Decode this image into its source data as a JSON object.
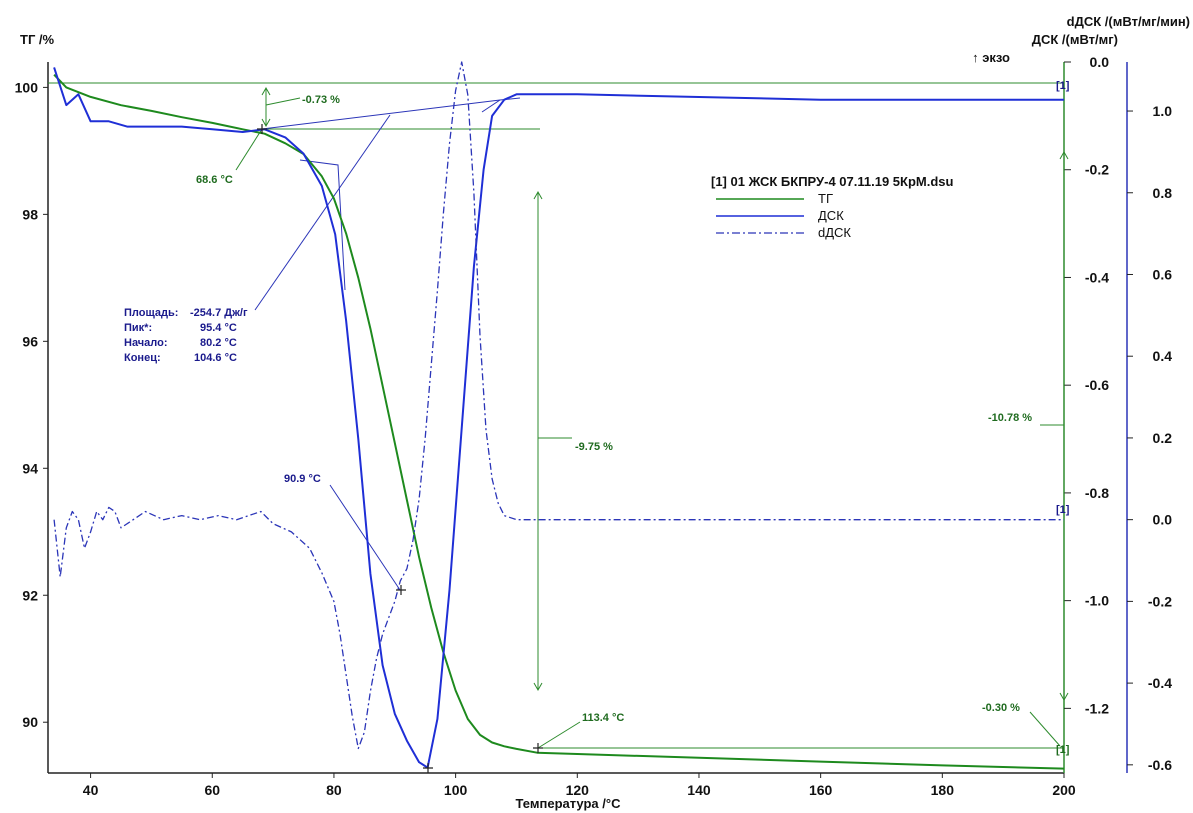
{
  "chart_data": {
    "type": "line",
    "file_label": "[1] 01 ЖСК БКПРУ-4 07.11.19 5КрМ.dsu",
    "xlabel": "Температура /°C",
    "xlim": [
      33,
      200
    ],
    "x_ticks": [
      "40",
      "60",
      "80",
      "100",
      "120",
      "140",
      "160",
      "180",
      "200"
    ],
    "y_tg": {
      "label": "ТГ /%",
      "lim": [
        89.2,
        100.4
      ],
      "ticks": [
        "100",
        "98",
        "96",
        "94",
        "92",
        "90"
      ]
    },
    "y_dsc": {
      "label": "ДСК /(мВт/мг)",
      "exo": "↑ экзо",
      "lim": [
        -1.32,
        0.0
      ],
      "ticks": [
        "0.0",
        "-0.2",
        "-0.4",
        "-0.6",
        "-0.8",
        "-1.0",
        "-1.2"
      ]
    },
    "y_ddsc": {
      "label": "dДСК /(мВт/мг/мин)",
      "lim": [
        -0.62,
        1.12
      ],
      "ticks": [
        "1.0",
        "0.8",
        "0.6",
        "0.4",
        "0.2",
        "0.0",
        "-0.2",
        "-0.4",
        "-0.6"
      ]
    },
    "legend": [
      "ТГ",
      "ДСК",
      "dДСК"
    ],
    "series": [
      {
        "name": "ТГ",
        "axis": "tg",
        "color": "#1e8a1e",
        "style": "solid",
        "x": [
          34,
          36,
          40,
          45,
          50,
          55,
          60,
          65,
          68.6,
          72,
          75,
          78,
          80,
          82,
          84,
          86,
          88,
          90,
          92,
          94,
          96,
          98,
          100,
          102,
          104,
          106,
          108,
          110,
          113.4,
          120,
          140,
          160,
          180,
          200
        ],
        "y": [
          100.2,
          100.0,
          99.85,
          99.72,
          99.63,
          99.53,
          99.44,
          99.34,
          99.27,
          99.12,
          98.95,
          98.6,
          98.25,
          97.7,
          97.0,
          96.2,
          95.3,
          94.4,
          93.5,
          92.6,
          91.8,
          91.1,
          90.5,
          90.05,
          89.8,
          89.68,
          89.62,
          89.58,
          89.52,
          89.5,
          89.44,
          89.38,
          89.32,
          89.27
        ]
      },
      {
        "name": "ДСК",
        "axis": "dsc",
        "color": "#1f2fd6",
        "style": "solid",
        "x": [
          34,
          36,
          38,
          40,
          43,
          46,
          50,
          55,
          60,
          65,
          68.6,
          72,
          75,
          78,
          80.2,
          82,
          84,
          86,
          88,
          90,
          92,
          94,
          95.4,
          97,
          99,
          101,
          103,
          104.6,
          106,
          108,
          110,
          112,
          120,
          140,
          160,
          180,
          200
        ],
        "y": [
          -0.01,
          -0.08,
          -0.06,
          -0.11,
          -0.11,
          -0.12,
          -0.12,
          -0.12,
          -0.125,
          -0.13,
          -0.125,
          -0.14,
          -0.17,
          -0.23,
          -0.32,
          -0.48,
          -0.7,
          -0.95,
          -1.12,
          -1.21,
          -1.26,
          -1.3,
          -1.31,
          -1.22,
          -0.98,
          -0.68,
          -0.38,
          -0.2,
          -0.1,
          -0.07,
          -0.06,
          -0.06,
          -0.06,
          -0.065,
          -0.07,
          -0.07,
          -0.07
        ]
      },
      {
        "name": "dДСК",
        "axis": "ddsc",
        "color": "#2b35b8",
        "style": "dash-dot",
        "x": [
          34,
          35,
          36,
          37,
          38,
          39,
          40,
          41,
          42,
          43,
          44,
          45,
          47,
          49,
          52,
          55,
          58,
          61,
          64,
          66,
          68,
          70,
          73,
          76,
          78,
          80,
          81,
          82,
          83,
          84,
          85,
          86,
          87,
          88,
          89,
          90,
          90.9,
          92,
          93,
          94,
          95,
          96,
          97,
          98,
          99,
          100,
          101,
          102,
          103,
          104,
          105,
          106,
          107,
          108,
          110,
          115,
          130,
          150,
          170,
          190,
          200
        ],
        "y": [
          0.0,
          -0.14,
          -0.02,
          0.02,
          0.0,
          -0.07,
          -0.03,
          0.02,
          0.0,
          0.03,
          0.02,
          -0.02,
          0.0,
          0.02,
          0.0,
          0.01,
          0.0,
          0.01,
          0.0,
          0.01,
          0.02,
          -0.01,
          -0.03,
          -0.07,
          -0.13,
          -0.2,
          -0.28,
          -0.38,
          -0.48,
          -0.56,
          -0.52,
          -0.42,
          -0.34,
          -0.28,
          -0.24,
          -0.2,
          -0.15,
          -0.12,
          -0.05,
          0.05,
          0.2,
          0.38,
          0.56,
          0.75,
          0.92,
          1.05,
          1.12,
          1.04,
          0.8,
          0.45,
          0.22,
          0.1,
          0.04,
          0.01,
          0.0,
          0.0,
          0.0,
          0.0,
          0.0,
          0.0,
          0.0
        ]
      }
    ],
    "annotations": {
      "tg_step1": {
        "label": "-0.73 %",
        "temp_label": "68.6 °C"
      },
      "tg_step2": {
        "label": "-9.75 %"
      },
      "tg_total": {
        "label": "-10.78 %"
      },
      "tg_end": {
        "label": "-0.30 %",
        "temp_label": "113.4 °C"
      },
      "ddsc_point": {
        "label": "90.9 °C"
      },
      "peak_box": [
        {
          "key": "Площадь:",
          "value": "-254.7 Дж/г"
        },
        {
          "key": "Пик*:",
          "value": "95.4 °C"
        },
        {
          "key": "Начало:",
          "value": "80.2 °C"
        },
        {
          "key": "Конец:",
          "value": "104.6 °C"
        }
      ],
      "marker": "[1]"
    }
  }
}
